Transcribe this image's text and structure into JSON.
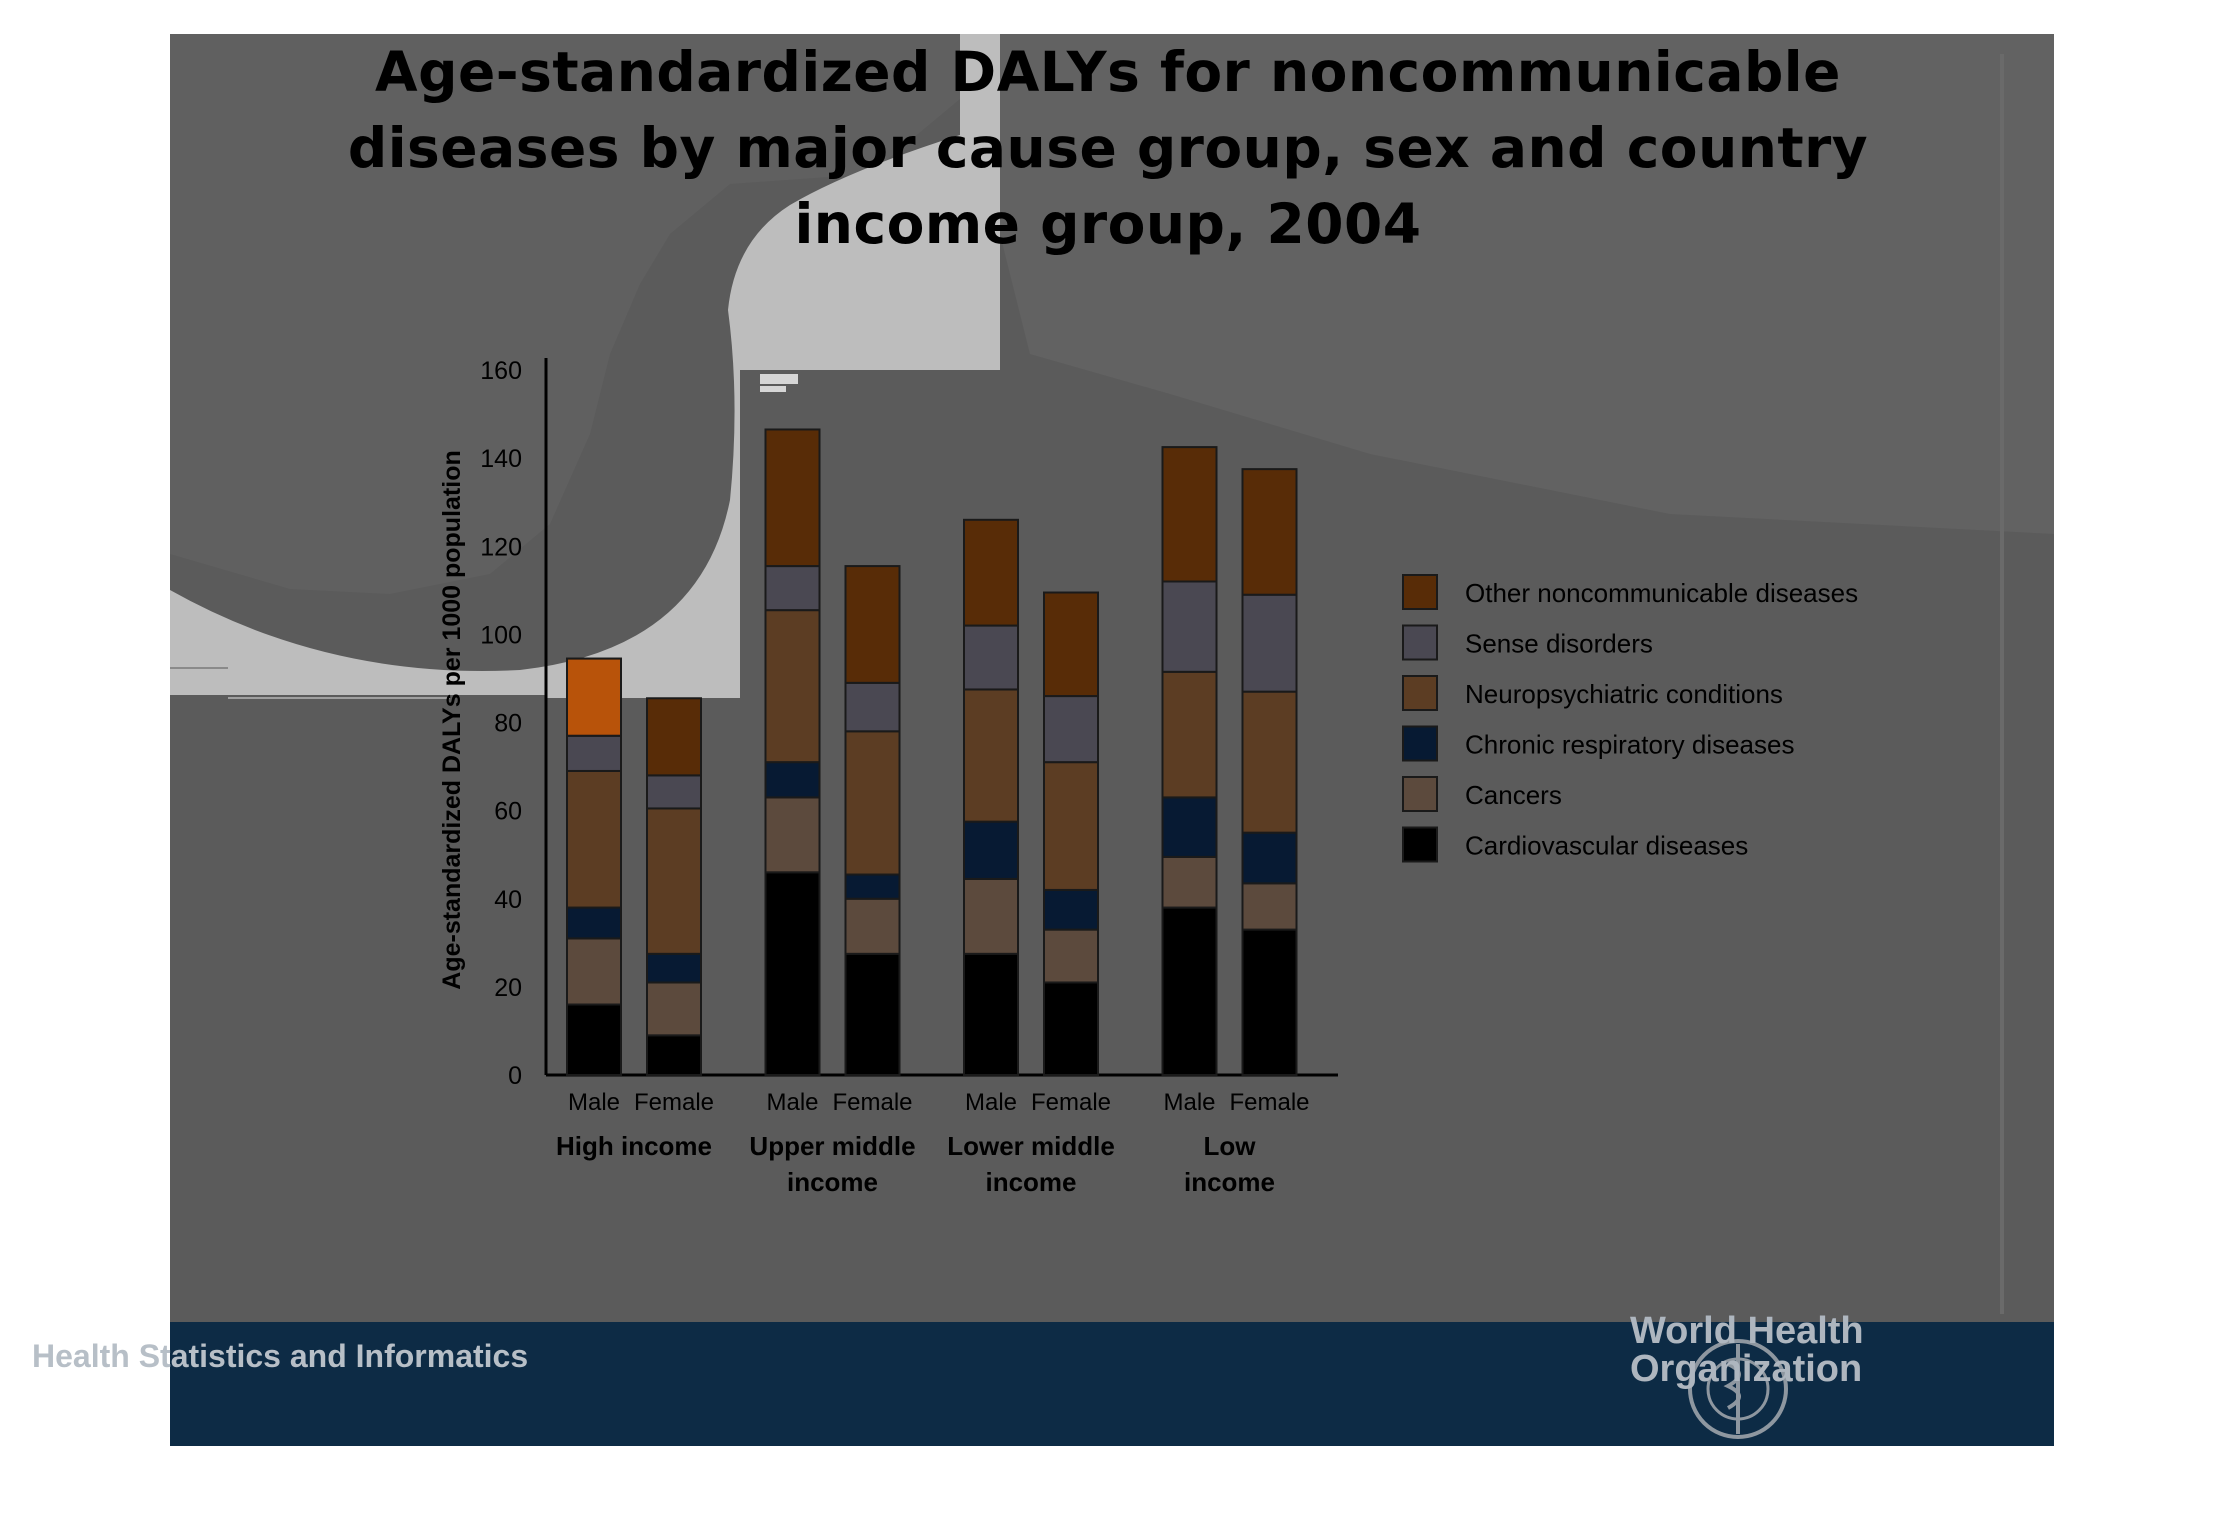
{
  "title_lines": [
    "Age-standardized DALYs for noncommunicable",
    "diseases by major cause group,  sex and country",
    "income group, 2004"
  ],
  "footer": {
    "left_text": "Health Statistics and Informatics",
    "org_line1": "World Health",
    "org_line2": "Organization"
  },
  "colors": {
    "slide_bg": "#5b5b5b",
    "footer_bg": "#0d2b45",
    "cardiovascular": "#000000",
    "cancers": "#5c4a3d",
    "chronic_respiratory": "#071a33",
    "neuropsychiatric": "#5c3d23",
    "sense": "#4a4852",
    "other": "#582c07"
  },
  "chart_data": {
    "type": "bar",
    "stacked": true,
    "title": "Age-standardized DALYs for noncommunicable diseases by major cause group,  sex and country income group, 2004",
    "ylabel": "Age-standardized DALYs per 1000 population",
    "xlabel": "",
    "ylim": [
      0,
      160
    ],
    "yticks": [
      0,
      20,
      40,
      60,
      80,
      100,
      120,
      140,
      160
    ],
    "groups": [
      {
        "label_lines": [
          "High income"
        ],
        "bars": [
          "Male",
          "Female"
        ]
      },
      {
        "label_lines": [
          "Upper middle",
          "income"
        ],
        "bars": [
          "Male",
          "Female"
        ]
      },
      {
        "label_lines": [
          "Lower middle",
          "income"
        ],
        "bars": [
          "Male",
          "Female"
        ]
      },
      {
        "label_lines": [
          "Low",
          "income"
        ],
        "bars": [
          "Male",
          "Female"
        ]
      }
    ],
    "categories": [
      "High income Male",
      "High income Female",
      "Upper middle income Male",
      "Upper middle income Female",
      "Lower middle income Male",
      "Lower middle income Female",
      "Low income Male",
      "Low income Female"
    ],
    "series": [
      {
        "name": "Cardiovascular diseases",
        "color": "#000000",
        "values": [
          16,
          9,
          46,
          27.5,
          27.5,
          21,
          38,
          33
        ]
      },
      {
        "name": "Cancers",
        "color": "#5c4a3d",
        "values": [
          15,
          12,
          17,
          12.5,
          17,
          12,
          11.5,
          10.5
        ]
      },
      {
        "name": "Chronic respiratory diseases",
        "color": "#071a33",
        "values": [
          7,
          6.5,
          8,
          5.5,
          13,
          9,
          13.5,
          11.5
        ]
      },
      {
        "name": "Neuropsychiatric conditions",
        "color": "#5c3d23",
        "values": [
          31,
          33,
          34.5,
          32.5,
          30,
          29,
          28.5,
          32
        ]
      },
      {
        "name": "Sense disorders",
        "color": "#4a4852",
        "values": [
          8,
          7.5,
          10,
          11,
          14.5,
          15,
          20.5,
          22
        ]
      },
      {
        "name": "Other noncommunicable diseases",
        "color": "#582c07",
        "values": [
          17.5,
          17.5,
          31,
          26.5,
          24,
          23.5,
          30.5,
          28.5
        ]
      }
    ],
    "legend": {
      "placement": "right",
      "order": [
        "Other noncommunicable diseases",
        "Sense disorders",
        "Neuropsychiatric conditions",
        "Chronic respiratory diseases",
        "Cancers",
        "Cardiovascular diseases"
      ]
    },
    "grid": false
  }
}
